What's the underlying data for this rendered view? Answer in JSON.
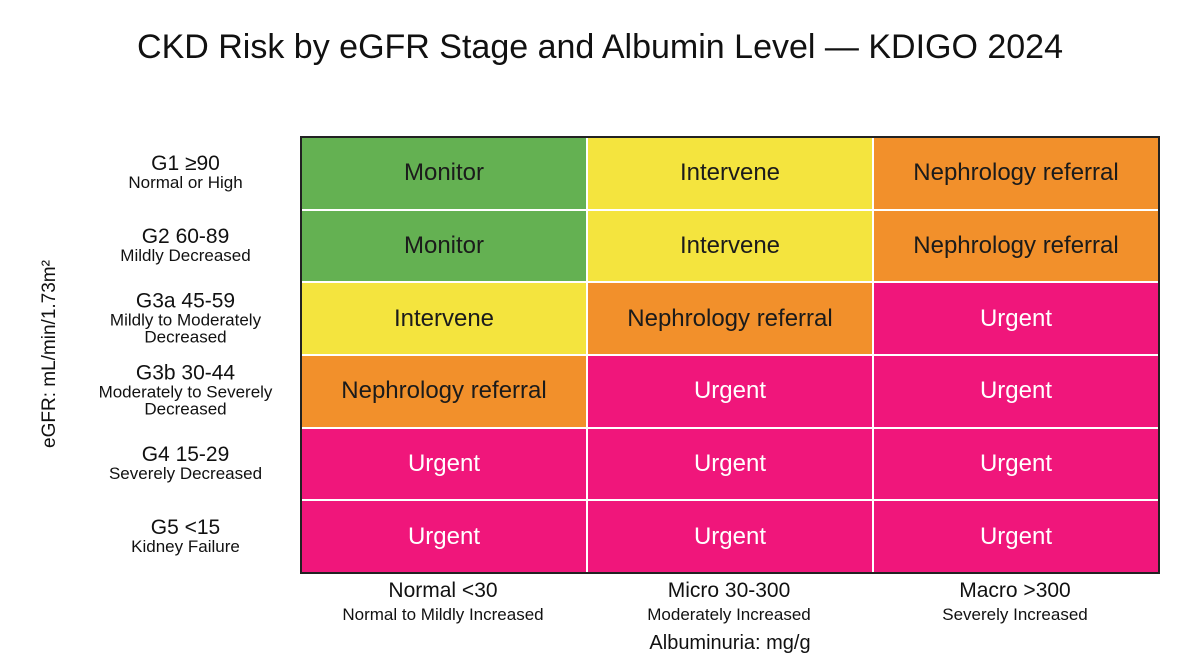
{
  "title": "CKD Risk by eGFR Stage and Albumin Level — KDIGO 2024",
  "y_axis_label": "eGFR: mL/min/1.73m²",
  "x_axis_label": "Albuminuria: mg/g",
  "columns": [
    {
      "label": "Normal <30",
      "sublabel": "Normal to Mildly Increased"
    },
    {
      "label": "Micro 30-300",
      "sublabel": "Moderately Increased"
    },
    {
      "label": "Macro >300",
      "sublabel": "Severely Increased"
    }
  ],
  "rows": [
    {
      "label": "G1 ≥90",
      "sublabel": "Normal or High",
      "cells": [
        "Monitor",
        "Intervene",
        "Nephrology referral"
      ]
    },
    {
      "label": "G2 60-89",
      "sublabel": "Mildly Decreased",
      "cells": [
        "Monitor",
        "Intervene",
        "Nephrology referral"
      ]
    },
    {
      "label": "G3a 45-59",
      "sublabel": "Mildly to Moderately Decreased",
      "cells": [
        "Intervene",
        "Nephrology referral",
        "Urgent"
      ]
    },
    {
      "label": "G3b 30-44",
      "sublabel": "Moderately to Severely Decreased",
      "cells": [
        "Nephrology referral",
        "Urgent",
        "Urgent"
      ]
    },
    {
      "label": "G4 15-29",
      "sublabel": "Severely Decreased",
      "cells": [
        "Urgent",
        "Urgent",
        "Urgent"
      ]
    },
    {
      "label": "G5 <15",
      "sublabel": "Kidney Failure",
      "cells": [
        "Urgent",
        "Urgent",
        "Urgent"
      ]
    }
  ],
  "levels": {
    "Monitor": {
      "color": "#64b152",
      "text_color": "#1b1b1b"
    },
    "Intervene": {
      "color": "#f4e43e",
      "text_color": "#1b1b1b"
    },
    "Nephrology referral": {
      "color": "#f2902b",
      "text_color": "#1b1b1b"
    },
    "Urgent": {
      "color": "#f0167b",
      "text_color": "#ffffff"
    }
  }
}
